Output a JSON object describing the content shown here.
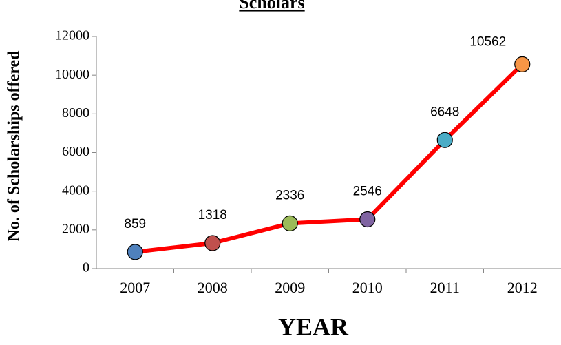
{
  "chart_data": {
    "type": "line",
    "title": "Scholars",
    "ylabel": "No. of Scholarships offered",
    "xlabel": "YEAR",
    "categories": [
      "2007",
      "2008",
      "2009",
      "2010",
      "2011",
      "2012"
    ],
    "values": [
      859,
      1318,
      2336,
      2546,
      6648,
      10562
    ],
    "line_color": "#ff0000",
    "marker_colors": [
      "#4f81bd",
      "#c0504d",
      "#9bbb59",
      "#8064a2",
      "#4bacc6",
      "#f79646"
    ],
    "ylim": [
      0,
      12000
    ],
    "yticks": [
      0,
      2000,
      4000,
      6000,
      8000,
      10000,
      12000
    ],
    "grid": false
  }
}
